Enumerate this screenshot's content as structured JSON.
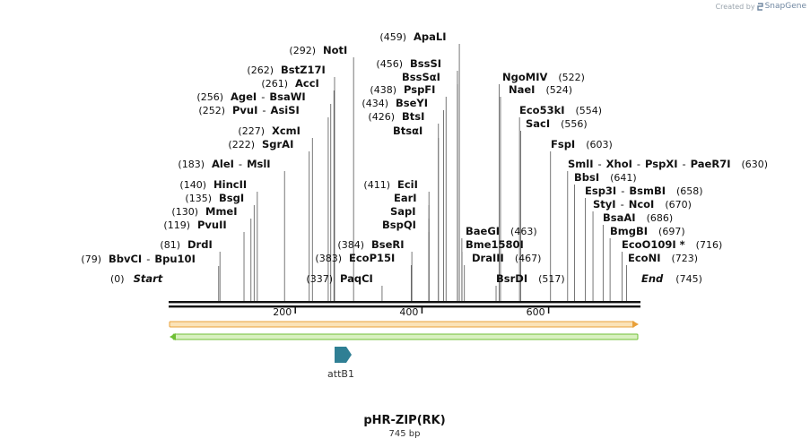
{
  "credit": {
    "prefix": "Created by",
    "brand": "SnapGene"
  },
  "plasmid": {
    "name": "pHR-ZIP(RK)",
    "size": "745 bp",
    "length": 745
  },
  "start_label": "Start",
  "start_pos": "(0)",
  "end_label": "End",
  "end_pos": "(745)",
  "ruler_ticks": [
    "200",
    "400",
    "600"
  ],
  "feature": {
    "name": "attB1",
    "color": "#2f7f94"
  },
  "colors": {
    "strand_top": "#e9a03a",
    "strand_top_fill": "#fbe3b8",
    "strand_bottom": "#6fbf35",
    "strand_bottom_fill": "#d8f0bf"
  },
  "sites": [
    {
      "pos": "(0)",
      "names": [
        "Start"
      ]
    },
    {
      "pos": "(79)",
      "names": [
        "BbvCI",
        "Bpu10I"
      ]
    },
    {
      "pos": "(81)",
      "names": [
        "DrdI"
      ]
    },
    {
      "pos": "(119)",
      "names": [
        "PvuII"
      ]
    },
    {
      "pos": "(130)",
      "names": [
        "MmeI"
      ]
    },
    {
      "pos": "(135)",
      "names": [
        "BsgI"
      ]
    },
    {
      "pos": "(140)",
      "names": [
        "HincII"
      ]
    },
    {
      "pos": "(183)",
      "names": [
        "AleI",
        "MslI"
      ]
    },
    {
      "pos": "(222)",
      "names": [
        "SgrAI"
      ]
    },
    {
      "pos": "(227)",
      "names": [
        "XcmI"
      ]
    },
    {
      "pos": "(252)",
      "names": [
        "PvuI",
        "AsiSI"
      ]
    },
    {
      "pos": "(256)",
      "names": [
        "AgeI",
        "BsaWI"
      ]
    },
    {
      "pos": "(261)",
      "names": [
        "AccI"
      ]
    },
    {
      "pos": "(262)",
      "names": [
        "BstZ17I"
      ]
    },
    {
      "pos": "(292)",
      "names": [
        "NotI"
      ]
    },
    {
      "pos": "(337)",
      "names": [
        "PaqCI"
      ]
    },
    {
      "pos": "(383)",
      "names": [
        "EcoP15I"
      ]
    },
    {
      "pos": "(384)",
      "names": [
        "BseRI"
      ]
    },
    {
      "pos": "(411)",
      "names": [
        "EciI"
      ]
    },
    {
      "pos": "",
      "names": [
        "EarI"
      ]
    },
    {
      "pos": "",
      "names": [
        "SapI"
      ]
    },
    {
      "pos": "",
      "names": [
        "BspQI"
      ]
    },
    {
      "pos": "(426)",
      "names": [
        "BtsI"
      ]
    },
    {
      "pos": "",
      "names": [
        "BtsαI"
      ]
    },
    {
      "pos": "(434)",
      "names": [
        "BseYI"
      ]
    },
    {
      "pos": "(438)",
      "names": [
        "PspFI"
      ]
    },
    {
      "pos": "(456)",
      "names": [
        "BssSI"
      ]
    },
    {
      "pos": "",
      "names": [
        "BssSαI"
      ]
    },
    {
      "pos": "(459)",
      "names": [
        "ApaLI"
      ]
    },
    {
      "pos": "(463)",
      "names": [
        "BaeGI"
      ]
    },
    {
      "pos": "",
      "names": [
        "Bme1580I"
      ]
    },
    {
      "pos": "(467)",
      "names": [
        "DraIII"
      ]
    },
    {
      "pos": "(517)",
      "names": [
        "BsrDI"
      ]
    },
    {
      "pos": "(522)",
      "names": [
        "NgoMIV"
      ]
    },
    {
      "pos": "(524)",
      "names": [
        "NaeI"
      ]
    },
    {
      "pos": "(554)",
      "names": [
        "Eco53kI"
      ]
    },
    {
      "pos": "(556)",
      "names": [
        "SacI"
      ]
    },
    {
      "pos": "(603)",
      "names": [
        "FspI"
      ]
    },
    {
      "pos": "(630)",
      "names": [
        "SmlI",
        "XhoI",
        "PspXI",
        "PaeR7I"
      ]
    },
    {
      "pos": "(641)",
      "names": [
        "BbsI"
      ]
    },
    {
      "pos": "(658)",
      "names": [
        "Esp3I",
        "BsmBI"
      ]
    },
    {
      "pos": "(670)",
      "names": [
        "StyI",
        "NcoI"
      ]
    },
    {
      "pos": "(686)",
      "names": [
        "BsaAI"
      ]
    },
    {
      "pos": "(697)",
      "names": [
        "BmgBI"
      ]
    },
    {
      "pos": "(716)",
      "names": [
        "EcoO109I *"
      ]
    },
    {
      "pos": "(723)",
      "names": [
        "EcoNI"
      ]
    },
    {
      "pos": "(745)",
      "names": [
        "End"
      ]
    }
  ]
}
